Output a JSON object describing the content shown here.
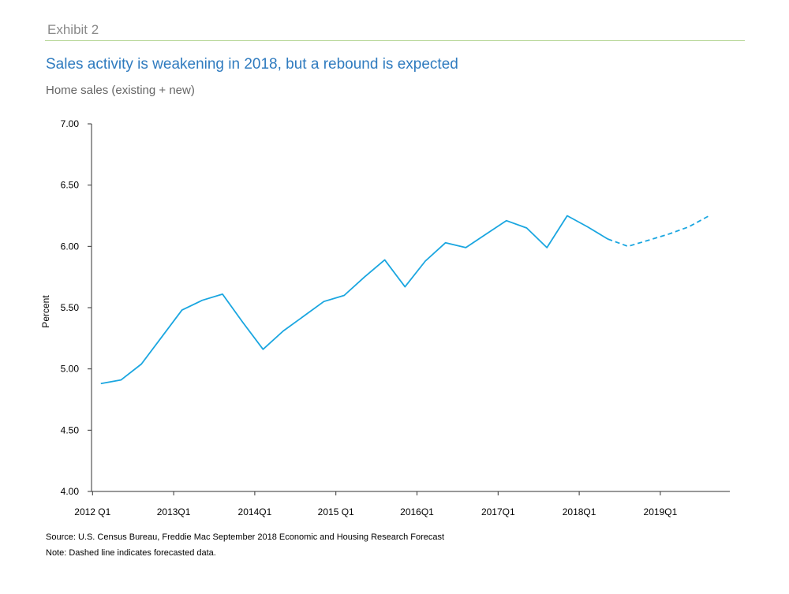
{
  "header": {
    "exhibit": "Exhibit 2",
    "title": "Sales activity is weakening in 2018, but a rebound is expected",
    "subtitle": "Home sales (existing + new)"
  },
  "footer": {
    "source": "Source: U.S. Census Bureau, Freddie Mac September 2018 Economic and Housing Research Forecast",
    "note": "Note: Dashed line indicates forecasted data."
  },
  "colors": {
    "line": "#1aa6e0",
    "axis": "#333333",
    "title": "#2f7bbf"
  },
  "chart_data": {
    "type": "line",
    "ylabel": "Percent",
    "xlabel": "",
    "ylim": [
      4.0,
      7.0
    ],
    "yticks": [
      "4.00",
      "4.50",
      "5.00",
      "5.50",
      "6.00",
      "6.50",
      "7.00"
    ],
    "xtick_labels": [
      "2012 Q1",
      "2013Q1",
      "2014Q1",
      "2015 Q1",
      "2016Q1",
      "2017Q1",
      "2018Q1",
      "2019Q1"
    ],
    "grid": false,
    "x": [
      "2012Q1",
      "2012Q2",
      "2012Q3",
      "2012Q4",
      "2013Q1",
      "2013Q2",
      "2013Q3",
      "2013Q4",
      "2014Q1",
      "2014Q2",
      "2014Q3",
      "2014Q4",
      "2015Q1",
      "2015Q2",
      "2015Q3",
      "2015Q4",
      "2016Q1",
      "2016Q2",
      "2016Q3",
      "2016Q4",
      "2017Q1",
      "2017Q2",
      "2017Q3",
      "2017Q4",
      "2018Q1",
      "2018Q2",
      "2018Q3",
      "2018Q4",
      "2019Q1",
      "2019Q2",
      "2019Q3"
    ],
    "series": [
      {
        "style": "solid",
        "values": [
          4.88,
          4.91,
          5.04,
          5.26,
          5.48,
          5.56,
          5.61,
          5.38,
          5.16,
          5.31,
          5.43,
          5.55,
          5.6,
          5.75,
          5.89,
          5.67,
          5.88,
          6.03,
          5.99,
          6.1,
          6.21,
          6.15,
          5.99,
          6.25,
          6.16,
          6.06,
          null,
          null,
          null,
          null,
          null
        ]
      },
      {
        "style": "dashed",
        "values": [
          null,
          null,
          null,
          null,
          null,
          null,
          null,
          null,
          null,
          null,
          null,
          null,
          null,
          null,
          null,
          null,
          null,
          null,
          null,
          null,
          null,
          null,
          null,
          null,
          null,
          6.06,
          6.0,
          6.05,
          6.1,
          6.16,
          6.25
        ]
      }
    ]
  }
}
